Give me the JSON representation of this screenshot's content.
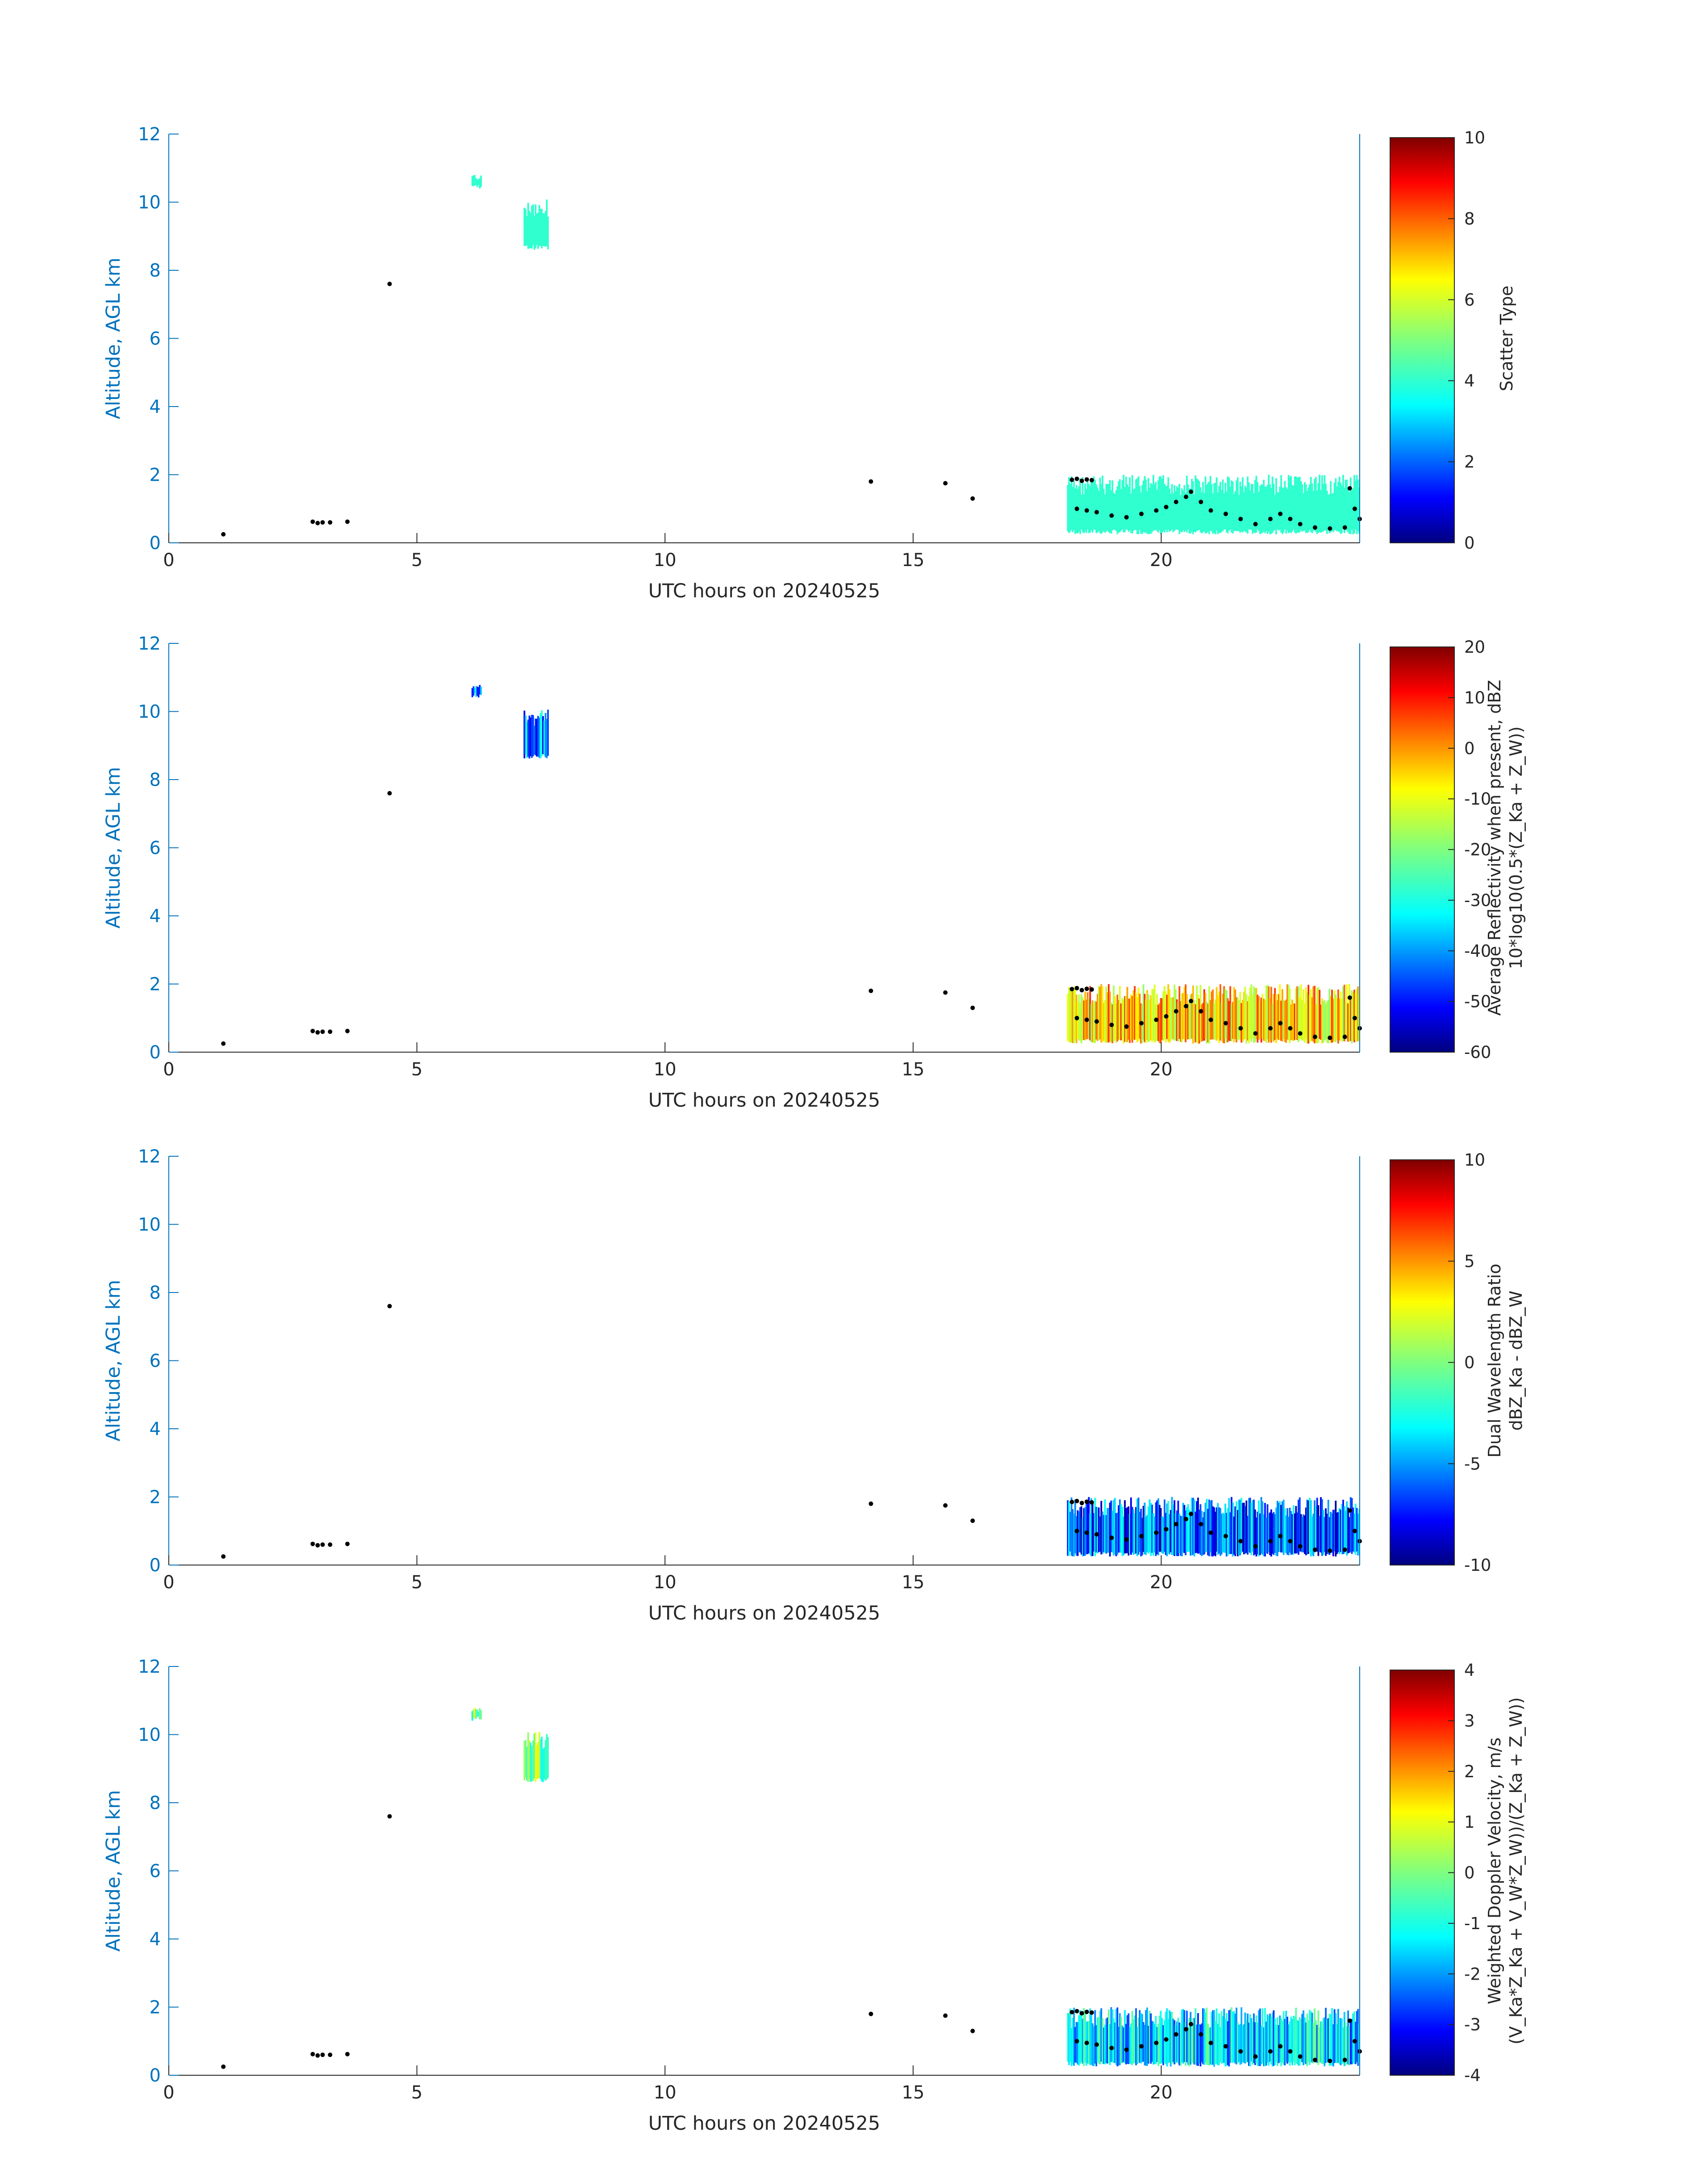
{
  "figure": {
    "date": "20240525",
    "panels": [
      {
        "key": "scatter",
        "ylabel": "Altitude, AGL km",
        "xlabel": "UTC hours on 20240525",
        "cbar_lines": [
          "Scatter Type"
        ],
        "cbar_ticks": [
          "0",
          "2",
          "4",
          "6",
          "8",
          "10"
        ],
        "cbar_range": [
          0,
          10
        ]
      },
      {
        "key": "reflectivity",
        "ylabel": "Altitude, AGL km",
        "xlabel": "UTC hours on 20240525",
        "cbar_lines": [
          "Average Reflectivity when present, dBZ",
          "10*log10(0.5*(Z_Ka + Z_W))"
        ],
        "cbar_ticks": [
          "-60",
          "-50",
          "-40",
          "-30",
          "-20",
          "-10",
          "0",
          "10",
          "20"
        ],
        "cbar_range": [
          -60,
          20
        ]
      },
      {
        "key": "dwr",
        "ylabel": "Altitude, AGL km",
        "xlabel": "UTC hours on 20240525",
        "cbar_lines": [
          "Dual Wavelength Ratio",
          "dBZ_Ka - dBZ_W"
        ],
        "cbar_ticks": [
          "-10",
          "-5",
          "0",
          "5",
          "10"
        ],
        "cbar_range": [
          -10,
          10
        ]
      },
      {
        "key": "velocity",
        "ylabel": "Altitude, AGL km",
        "xlabel": "UTC hours on 20240525",
        "cbar_lines": [
          "Weighted Doppler Velocity, m/s",
          "(V_Ka*Z_Ka + V_W*Z_W))/(Z_Ka + Z_W))"
        ],
        "cbar_ticks": [
          "-4",
          "-3",
          "-2",
          "-1",
          "0",
          "1",
          "2",
          "3",
          "4"
        ],
        "cbar_range": [
          -4,
          4
        ]
      }
    ]
  },
  "chart_data": {
    "type": "heatmap",
    "x_ticks": [
      "0",
      "5",
      "10",
      "15",
      "20"
    ],
    "y_ticks": [
      "0",
      "2",
      "4",
      "6",
      "8",
      "10",
      "12"
    ],
    "xlim": [
      0,
      24
    ],
    "ylim": [
      0,
      12
    ],
    "colormap": "jet",
    "cloud_base_points": [
      [
        1.1,
        0.25
      ],
      [
        2.9,
        0.62
      ],
      [
        3.0,
        0.58
      ],
      [
        3.1,
        0.6
      ],
      [
        3.25,
        0.6
      ],
      [
        3.6,
        0.62
      ],
      [
        4.45,
        7.6
      ],
      [
        14.15,
        1.8
      ],
      [
        15.65,
        1.75
      ],
      [
        16.2,
        1.3
      ],
      [
        18.2,
        1.85
      ],
      [
        18.3,
        1.88
      ],
      [
        18.4,
        1.82
      ],
      [
        18.5,
        1.86
      ],
      [
        18.6,
        1.84
      ],
      [
        18.3,
        1.0
      ],
      [
        18.5,
        0.95
      ],
      [
        18.7,
        0.9
      ],
      [
        19.0,
        0.8
      ],
      [
        19.3,
        0.75
      ],
      [
        19.6,
        0.85
      ],
      [
        19.9,
        0.95
      ],
      [
        20.1,
        1.05
      ],
      [
        20.3,
        1.2
      ],
      [
        20.5,
        1.35
      ],
      [
        20.6,
        1.5
      ],
      [
        20.8,
        1.2
      ],
      [
        21.0,
        0.95
      ],
      [
        21.3,
        0.85
      ],
      [
        21.6,
        0.7
      ],
      [
        21.9,
        0.55
      ],
      [
        22.2,
        0.7
      ],
      [
        22.4,
        0.85
      ],
      [
        22.6,
        0.7
      ],
      [
        22.8,
        0.55
      ],
      [
        23.1,
        0.45
      ],
      [
        23.4,
        0.42
      ],
      [
        23.7,
        0.45
      ],
      [
        23.8,
        1.6
      ],
      [
        23.9,
        1.0
      ],
      [
        24.0,
        0.7
      ]
    ],
    "echo_regions": [
      {
        "x0": 18.1,
        "x1": 24.0,
        "base": 0.25,
        "top": 2.0,
        "scatter": 4,
        "reflectivity": -5,
        "dwr": -6,
        "velocity": -1.5
      },
      {
        "x0": 6.1,
        "x1": 6.3,
        "base": 10.4,
        "top": 10.8,
        "scatter": 4,
        "reflectivity": -45,
        "velocity": 0
      },
      {
        "x0": 7.15,
        "x1": 7.65,
        "base": 8.6,
        "top": 10.1,
        "scatter": 4,
        "reflectivity": -42,
        "velocity": 0
      }
    ]
  }
}
